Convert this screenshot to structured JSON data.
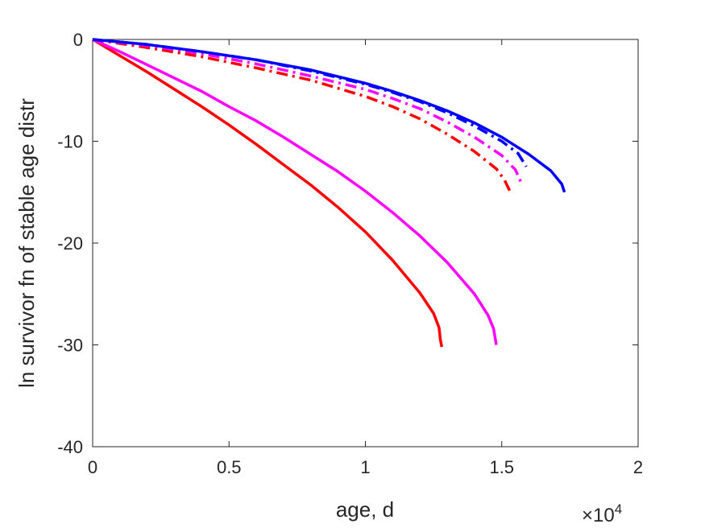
{
  "chart_data": {
    "type": "line",
    "xlabel": "age, d",
    "ylabel": "ln survivor fn of stable age distr",
    "x_exponent": {
      "base": "×10",
      "power": "4"
    },
    "xlim": [
      0,
      2
    ],
    "ylim": [
      -40,
      0
    ],
    "x_ticks": [
      "0",
      "0.5",
      "1",
      "1.5",
      "2"
    ],
    "y_ticks": [
      "0",
      "-10",
      "-20",
      "-30",
      "-40"
    ],
    "grid": false,
    "legend": "none",
    "series": [
      {
        "color": "#ff0000",
        "style": "solid",
        "points": [
          [
            0,
            0
          ],
          [
            0.1,
            -1.6
          ],
          [
            0.2,
            -3.2
          ],
          [
            0.3,
            -4.9
          ],
          [
            0.4,
            -6.6
          ],
          [
            0.5,
            -8.4
          ],
          [
            0.6,
            -10.3
          ],
          [
            0.7,
            -12.3
          ],
          [
            0.8,
            -14.3
          ],
          [
            0.9,
            -16.5
          ],
          [
            1.0,
            -18.9
          ],
          [
            1.1,
            -21.7
          ],
          [
            1.2,
            -24.9
          ],
          [
            1.25,
            -26.9
          ],
          [
            1.27,
            -28.3
          ],
          [
            1.275,
            -29.5
          ],
          [
            1.28,
            -30.2
          ]
        ]
      },
      {
        "color": "#ff00ff",
        "style": "solid",
        "points": [
          [
            0,
            0
          ],
          [
            0.1,
            -1.2
          ],
          [
            0.2,
            -2.5
          ],
          [
            0.3,
            -3.8
          ],
          [
            0.4,
            -5.1
          ],
          [
            0.5,
            -6.6
          ],
          [
            0.6,
            -8.0
          ],
          [
            0.7,
            -9.6
          ],
          [
            0.8,
            -11.3
          ],
          [
            0.9,
            -13.0
          ],
          [
            1.0,
            -14.9
          ],
          [
            1.1,
            -17.0
          ],
          [
            1.2,
            -19.3
          ],
          [
            1.3,
            -21.9
          ],
          [
            1.4,
            -25.0
          ],
          [
            1.45,
            -27.1
          ],
          [
            1.47,
            -28.4
          ],
          [
            1.48,
            -30.0
          ]
        ]
      },
      {
        "color": "#ff0000",
        "style": "dashdot",
        "points": [
          [
            0,
            0
          ],
          [
            0.2,
            -0.8
          ],
          [
            0.4,
            -1.7
          ],
          [
            0.6,
            -2.8
          ],
          [
            0.8,
            -4.0
          ],
          [
            1.0,
            -5.6
          ],
          [
            1.1,
            -6.6
          ],
          [
            1.2,
            -7.8
          ],
          [
            1.3,
            -9.3
          ],
          [
            1.4,
            -11.0
          ],
          [
            1.48,
            -12.7
          ],
          [
            1.51,
            -13.8
          ],
          [
            1.53,
            -14.9
          ]
        ]
      },
      {
        "color": "#ff00ff",
        "style": "dashdot",
        "points": [
          [
            0,
            0
          ],
          [
            0.2,
            -0.6
          ],
          [
            0.4,
            -1.4
          ],
          [
            0.6,
            -2.4
          ],
          [
            0.8,
            -3.6
          ],
          [
            1.0,
            -4.9
          ],
          [
            1.1,
            -5.8
          ],
          [
            1.2,
            -6.8
          ],
          [
            1.3,
            -8.1
          ],
          [
            1.4,
            -9.6
          ],
          [
            1.5,
            -11.4
          ],
          [
            1.55,
            -12.8
          ],
          [
            1.57,
            -14.0
          ]
        ]
      },
      {
        "color": "#0000ff",
        "style": "dashdot",
        "points": [
          [
            0,
            0
          ],
          [
            0.2,
            -0.5
          ],
          [
            0.4,
            -1.2
          ],
          [
            0.6,
            -2.0
          ],
          [
            0.8,
            -3.1
          ],
          [
            1.0,
            -4.4
          ],
          [
            1.1,
            -5.2
          ],
          [
            1.2,
            -6.1
          ],
          [
            1.3,
            -7.2
          ],
          [
            1.4,
            -8.5
          ],
          [
            1.5,
            -10.0
          ],
          [
            1.56,
            -11.2
          ],
          [
            1.59,
            -12.5
          ]
        ]
      },
      {
        "color": "#0000ff",
        "style": "solid",
        "points": [
          [
            0,
            0
          ],
          [
            0.2,
            -0.5
          ],
          [
            0.4,
            -1.2
          ],
          [
            0.6,
            -2.0
          ],
          [
            0.8,
            -3.0
          ],
          [
            1.0,
            -4.3
          ],
          [
            1.1,
            -5.1
          ],
          [
            1.2,
            -6.0
          ],
          [
            1.3,
            -7.0
          ],
          [
            1.4,
            -8.2
          ],
          [
            1.5,
            -9.6
          ],
          [
            1.6,
            -11.3
          ],
          [
            1.68,
            -12.9
          ],
          [
            1.72,
            -14.2
          ],
          [
            1.73,
            -15.0
          ]
        ]
      }
    ]
  }
}
